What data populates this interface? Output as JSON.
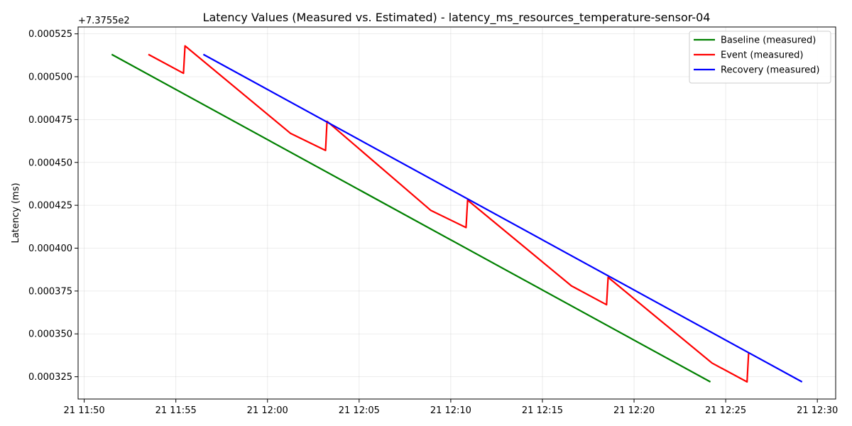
{
  "chart_data": {
    "type": "line",
    "title": "Latency Values (Measured vs. Estimated) - latency_ms_resources_temperature-sensor-04",
    "xlabel": "",
    "ylabel": "Latency (ms)",
    "offset_label": "+7.3755e2",
    "xlim": [
      "11:49:40",
      "12:31:00"
    ],
    "ylim": [
      0.000312,
      0.000529
    ],
    "x_ticks": [
      {
        "time": "11:50:00",
        "label": "21 11:50"
      },
      {
        "time": "11:55:00",
        "label": "21 11:55"
      },
      {
        "time": "12:00:00",
        "label": "21 12:00"
      },
      {
        "time": "12:05:00",
        "label": "21 12:05"
      },
      {
        "time": "12:10:00",
        "label": "21 12:10"
      },
      {
        "time": "12:15:00",
        "label": "21 12:15"
      },
      {
        "time": "12:20:00",
        "label": "21 12:20"
      },
      {
        "time": "12:25:00",
        "label": "21 12:25"
      },
      {
        "time": "12:30:00",
        "label": "21 12:30"
      }
    ],
    "y_ticks": [
      {
        "value": 0.000325,
        "label": "0.000325"
      },
      {
        "value": 0.00035,
        "label": "0.000350"
      },
      {
        "value": 0.000375,
        "label": "0.000375"
      },
      {
        "value": 0.0004,
        "label": "0.000400"
      },
      {
        "value": 0.000425,
        "label": "0.000425"
      },
      {
        "value": 0.00045,
        "label": "0.000450"
      },
      {
        "value": 0.000475,
        "label": "0.000475"
      },
      {
        "value": 0.0005,
        "label": "0.000500"
      },
      {
        "value": 0.000525,
        "label": "0.000525"
      }
    ],
    "grid": true,
    "legend_position": "top-right",
    "series": [
      {
        "name": "Baseline (measured)",
        "color": "#008000",
        "x": [
          "11:51:30",
          "12:24:10"
        ],
        "y": [
          0.000513,
          0.000322
        ]
      },
      {
        "name": "Event (measured)",
        "color": "#ff0000",
        "x": [
          "11:53:30",
          "11:55:25",
          "11:55:30",
          "12:01:15",
          "12:03:10",
          "12:03:15",
          "12:08:55",
          "12:10:50",
          "12:10:55",
          "12:16:35",
          "12:18:30",
          "12:18:35",
          "12:24:15",
          "12:26:10",
          "12:26:15"
        ],
        "y": [
          0.000513,
          0.000502,
          0.000518,
          0.000467,
          0.000457,
          0.000474,
          0.000422,
          0.000412,
          0.000428,
          0.000378,
          0.000367,
          0.000383,
          0.000333,
          0.000322,
          0.000339
        ]
      },
      {
        "name": "Recovery (measured)",
        "color": "#0000ff",
        "x": [
          "11:56:30",
          "12:29:10"
        ],
        "y": [
          0.000513,
          0.000322
        ]
      }
    ]
  }
}
